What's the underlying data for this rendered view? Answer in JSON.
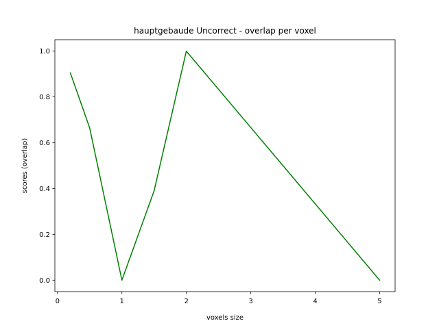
{
  "chart_data": {
    "type": "line",
    "title": "hauptgebaude Uncorrect - overlap per voxel",
    "xlabel": "voxels size",
    "ylabel": "scores (overlap)",
    "xlim": [
      -0.04,
      5.24
    ],
    "ylim": [
      -0.05,
      1.05
    ],
    "x_ticks": [
      0,
      1,
      2,
      3,
      4,
      5
    ],
    "x_tick_labels": [
      "0",
      "1",
      "2",
      "3",
      "4",
      "5"
    ],
    "y_ticks": [
      0.0,
      0.2,
      0.4,
      0.6,
      0.8,
      1.0
    ],
    "y_tick_labels": [
      "0.0",
      "0.2",
      "0.4",
      "0.6",
      "0.8",
      "1.0"
    ],
    "grid": false,
    "legend": "none",
    "series": [
      {
        "color": "#008000",
        "x": [
          0.2,
          0.5,
          1.0,
          1.5,
          2.0,
          5.0
        ],
        "y": [
          0.905,
          0.665,
          0.0,
          0.39,
          1.0,
          0.0
        ]
      }
    ]
  }
}
